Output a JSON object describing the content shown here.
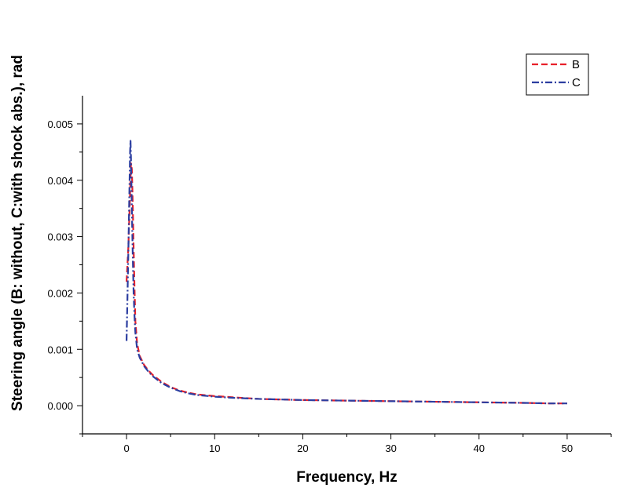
{
  "chart_data": {
    "type": "line",
    "xlabel": "Frequency, Hz",
    "ylabel": "Steering angle (B: without, C:with shock abs.), rad",
    "xlim": [
      -5,
      55
    ],
    "ylim": [
      -0.0005,
      0.0055
    ],
    "x_ticks": [
      0,
      10,
      20,
      30,
      40,
      50
    ],
    "x_tick_labels": [
      "0",
      "10",
      "20",
      "30",
      "40",
      "50"
    ],
    "y_ticks": [
      0.0,
      0.001,
      0.002,
      0.003,
      0.004,
      0.005
    ],
    "y_tick_labels": [
      "0.000",
      "0.001",
      "0.002",
      "0.003",
      "0.004",
      "0.005"
    ],
    "grid": false,
    "legend_position": "top-right",
    "series": [
      {
        "name": "B",
        "color": "#e8202a",
        "style": "dash",
        "x": [
          0.0,
          0.2,
          0.35,
          0.5,
          0.6,
          0.7,
          0.8,
          0.9,
          1.0,
          1.2,
          1.5,
          2,
          2.5,
          3,
          4,
          5,
          6,
          7,
          8,
          10,
          12,
          15,
          20,
          25,
          30,
          35,
          40,
          45,
          48,
          50
        ],
        "y": [
          0.0022,
          0.0028,
          0.0035,
          0.0043,
          0.0042,
          0.0036,
          0.0028,
          0.0021,
          0.0015,
          0.0011,
          0.00088,
          0.00072,
          0.00062,
          0.00054,
          0.00042,
          0.00033,
          0.00027,
          0.00023,
          0.0002,
          0.00017,
          0.00015,
          0.00012,
          0.0001,
          9e-05,
          8e-05,
          7e-05,
          6e-05,
          5e-05,
          4e-05,
          4e-05
        ]
      },
      {
        "name": "C",
        "color": "#2c3ea0",
        "style": "dash-dot",
        "x": [
          0.0,
          0.1,
          0.2,
          0.3,
          0.4,
          0.45,
          0.5,
          0.6,
          0.7,
          0.8,
          0.9,
          1.0,
          1.2,
          1.5,
          2,
          2.5,
          3,
          4,
          5,
          6,
          7,
          8,
          10,
          12,
          15,
          20,
          25,
          30,
          35,
          40,
          45,
          48,
          50
        ],
        "y": [
          0.00115,
          0.0019,
          0.0027,
          0.0036,
          0.0045,
          0.0047,
          0.0044,
          0.0035,
          0.0027,
          0.002,
          0.0016,
          0.0013,
          0.001,
          0.00085,
          0.0007,
          0.0006,
          0.00052,
          0.0004,
          0.00032,
          0.00026,
          0.00022,
          0.00019,
          0.00016,
          0.00014,
          0.00012,
          0.0001,
          9e-05,
          8e-05,
          7e-05,
          6e-05,
          5e-05,
          4e-05,
          4e-05
        ]
      }
    ]
  }
}
